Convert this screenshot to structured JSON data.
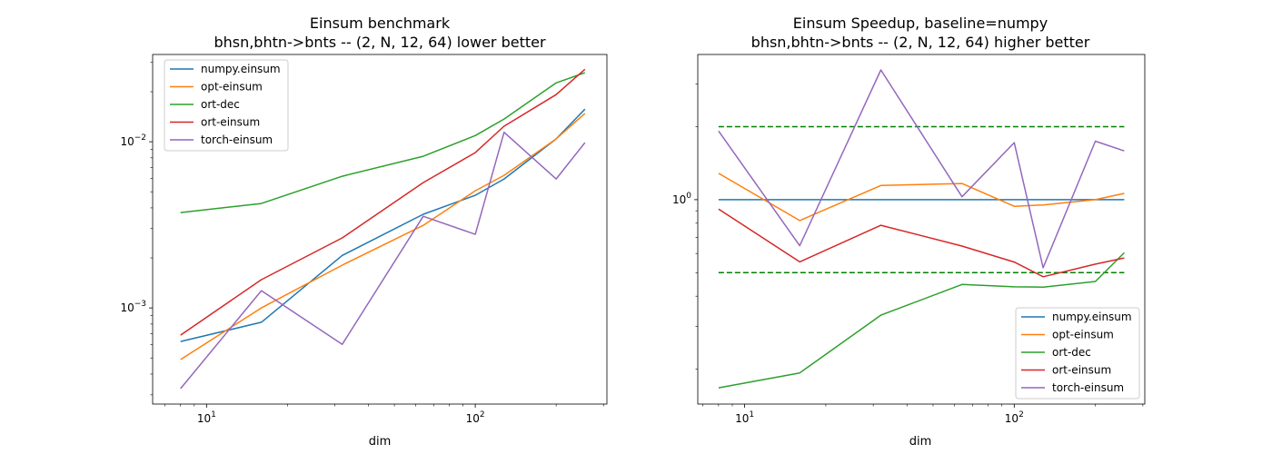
{
  "colors": {
    "numpy.einsum": "#1f77b4",
    "opt-einsum": "#ff7f0e",
    "ort-dec": "#2ca02c",
    "ort-einsum": "#d62728",
    "torch-einsum": "#9467bd",
    "reference": "#008000"
  },
  "chart_data": [
    {
      "type": "line",
      "title": "Einsum benchmark",
      "subtitle": "bhsn,bhtn->bnts -- (2, N, 12, 64) lower better",
      "xlabel": "dim",
      "ylabel": "",
      "xscale": "log",
      "yscale": "log",
      "xlim": [
        6.3,
        309
      ],
      "ylim": [
        0.000264,
        0.0335
      ],
      "xticks": [
        {
          "value": 10,
          "label": "10^1"
        },
        {
          "value": 100,
          "label": "10^2"
        }
      ],
      "yticks": [
        {
          "value": 0.001,
          "label": "10^-3"
        },
        {
          "value": 0.01,
          "label": "10^-2"
        }
      ],
      "legend": "upper-left",
      "x": [
        8,
        16,
        32,
        64,
        100,
        128,
        200,
        256
      ],
      "series": [
        {
          "name": "numpy.einsum",
          "values": [
            0.000628,
            0.00082,
            0.00207,
            0.00366,
            0.00476,
            0.00597,
            0.0104,
            0.0157
          ]
        },
        {
          "name": "opt-einsum",
          "values": [
            0.000489,
            0.001,
            0.00181,
            0.00314,
            0.00507,
            0.00628,
            0.0104,
            0.0148
          ]
        },
        {
          "name": "ort-dec",
          "values": [
            0.00375,
            0.00425,
            0.0062,
            0.00818,
            0.0109,
            0.0137,
            0.0226,
            0.026
          ]
        },
        {
          "name": "ort-einsum",
          "values": [
            0.000686,
            0.00148,
            0.00264,
            0.00568,
            0.0086,
            0.0124,
            0.0192,
            0.0273
          ]
        },
        {
          "name": "torch-einsum",
          "values": [
            0.000327,
            0.00127,
            0.000604,
            0.00356,
            0.00277,
            0.0114,
            0.00597,
            0.00988
          ]
        }
      ],
      "reference_lines": []
    },
    {
      "type": "line",
      "title": "Einsum Speedup, baseline=numpy",
      "subtitle": "bhsn,bhtn->bnts -- (2, N, 12, 64) higher better",
      "xlabel": "dim",
      "ylabel": "",
      "xscale": "log",
      "yscale": "log",
      "xlim": [
        6.7,
        305
      ],
      "ylim": [
        0.1436,
        3.97
      ],
      "xticks": [
        {
          "value": 10,
          "label": "10^1"
        },
        {
          "value": 100,
          "label": "10^2"
        }
      ],
      "yticks": [
        {
          "value": 1,
          "label": "10^0"
        }
      ],
      "legend": "lower-right",
      "x": [
        8,
        16,
        32,
        64,
        100,
        128,
        200,
        256
      ],
      "series": [
        {
          "name": "numpy.einsum",
          "values": [
            1,
            1,
            1,
            1,
            1,
            1,
            1,
            1
          ]
        },
        {
          "name": "opt-einsum",
          "values": [
            1.284,
            0.82,
            1.144,
            1.166,
            0.939,
            0.951,
            1.0,
            1.061
          ]
        },
        {
          "name": "ort-dec",
          "values": [
            0.1675,
            0.193,
            0.334,
            0.447,
            0.437,
            0.436,
            0.46,
            0.604
          ]
        },
        {
          "name": "ort-einsum",
          "values": [
            0.915,
            0.554,
            0.784,
            0.644,
            0.553,
            0.481,
            0.542,
            0.575
          ]
        },
        {
          "name": "torch-einsum",
          "values": [
            1.92,
            0.646,
            3.43,
            1.028,
            1.718,
            0.524,
            1.742,
            1.589
          ]
        }
      ],
      "reference_lines": [
        {
          "value": 2,
          "style": "dashed"
        },
        {
          "value": 0.5,
          "style": "dashed"
        }
      ]
    }
  ]
}
